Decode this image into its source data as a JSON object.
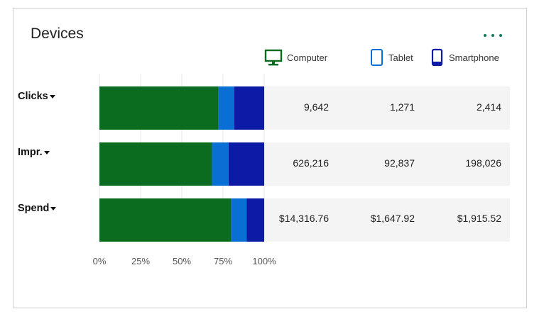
{
  "header": {
    "title": "Devices",
    "more_icon": "more-horizontal-icon"
  },
  "legend": [
    {
      "label": "Computer",
      "icon": "computer-icon",
      "color": "#0b6b1f"
    },
    {
      "label": "Tablet",
      "icon": "tablet-icon",
      "color": "#0a6fd4"
    },
    {
      "label": "Smartphone",
      "icon": "smartphone-icon",
      "color": "#0d1aa5"
    }
  ],
  "rows": [
    {
      "label": "Clicks",
      "values": [
        "9,642",
        "1,271",
        "2,414"
      ]
    },
    {
      "label": "Impr.",
      "values": [
        "626,216",
        "92,837",
        "198,026"
      ]
    },
    {
      "label": "Spend",
      "values": [
        "$14,316.76",
        "$1,647.92",
        "$1,915.52"
      ]
    }
  ],
  "chart_data": {
    "type": "bar",
    "orientation": "horizontal",
    "stacked": "percent",
    "categories": [
      "Clicks",
      "Impr.",
      "Spend"
    ],
    "series": [
      {
        "name": "Computer",
        "color": "#0b6b1f",
        "values": [
          9642,
          626216,
          14316.76
        ]
      },
      {
        "name": "Tablet",
        "color": "#0a6fd4",
        "values": [
          1271,
          92837,
          1647.92
        ]
      },
      {
        "name": "Smartphone",
        "color": "#0d1aa5",
        "values": [
          2414,
          198026,
          1915.52
        ]
      }
    ],
    "xlim": [
      0,
      100
    ],
    "xticks": [
      "0%",
      "25%",
      "50%",
      "75%",
      "100%"
    ],
    "grid": true,
    "legend_position": "top"
  }
}
